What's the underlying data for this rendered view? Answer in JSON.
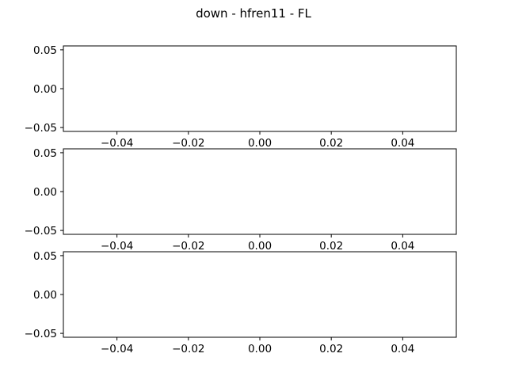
{
  "figure": {
    "title": "down - hfren11 - FL",
    "background": "#ffffff",
    "axis_color": "#000000"
  },
  "chart_data": [
    {
      "type": "line",
      "title": "",
      "xlabel": "",
      "ylabel": "",
      "series": [],
      "xlim": [
        -0.055,
        0.055
      ],
      "ylim": [
        -0.055,
        0.055
      ],
      "xticks": [
        -0.04,
        -0.02,
        0.0,
        0.02,
        0.04
      ],
      "xtick_labels": [
        "−0.04",
        "−0.02",
        "0.00",
        "0.02",
        "0.04"
      ],
      "yticks": [
        0.05,
        0.0,
        -0.05
      ],
      "ytick_labels": [
        "0.05",
        "0.00",
        "−0.05"
      ],
      "grid": false
    },
    {
      "type": "line",
      "title": "",
      "xlabel": "",
      "ylabel": "",
      "series": [],
      "xlim": [
        -0.055,
        0.055
      ],
      "ylim": [
        -0.055,
        0.055
      ],
      "xticks": [
        -0.04,
        -0.02,
        0.0,
        0.02,
        0.04
      ],
      "xtick_labels": [
        "−0.04",
        "−0.02",
        "0.00",
        "0.02",
        "0.04"
      ],
      "yticks": [
        0.05,
        0.0,
        -0.05
      ],
      "ytick_labels": [
        "0.05",
        "0.00",
        "−0.05"
      ],
      "grid": false
    },
    {
      "type": "line",
      "title": "",
      "xlabel": "",
      "ylabel": "",
      "series": [],
      "xlim": [
        -0.055,
        0.055
      ],
      "ylim": [
        -0.055,
        0.055
      ],
      "xticks": [
        -0.04,
        -0.02,
        0.0,
        0.02,
        0.04
      ],
      "xtick_labels": [
        "−0.04",
        "−0.02",
        "0.00",
        "0.02",
        "0.04"
      ],
      "yticks": [
        0.05,
        0.0,
        -0.05
      ],
      "ytick_labels": [
        "0.05",
        "0.00",
        "−0.05"
      ],
      "grid": false
    }
  ]
}
